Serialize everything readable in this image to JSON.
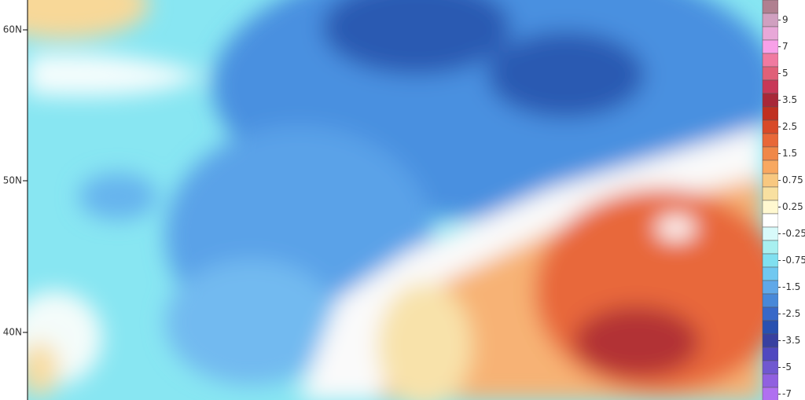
{
  "map": {
    "lat_labels": [
      "60N",
      "50N",
      "40N"
    ]
  },
  "legend": {
    "labels": [
      "9",
      "7",
      "5",
      "3.5",
      "2.5",
      "1.5",
      "0.75",
      "0.25",
      "-0.25",
      "-0.75",
      "-1.5",
      "-2.5",
      "-3.5",
      "-5",
      "-7"
    ],
    "colors": [
      "#b08090",
      "#d0a0c0",
      "#e8a8d8",
      "#f8a0e8",
      "#f07aa0",
      "#e06078",
      "#c83858",
      "#a82838",
      "#c03020",
      "#d84a28",
      "#e86838",
      "#f08848",
      "#f8a860",
      "#f8c880",
      "#f8e0a0",
      "#fff8d0",
      "#ffffff",
      "#d8fafa",
      "#a8f0f0",
      "#80e0f0",
      "#70c8f0",
      "#60a8e8",
      "#4888d8",
      "#3868c8",
      "#2850b0",
      "#3840a0",
      "#5048c0",
      "#7058d0",
      "#9060e0",
      "#b070f0"
    ]
  }
}
